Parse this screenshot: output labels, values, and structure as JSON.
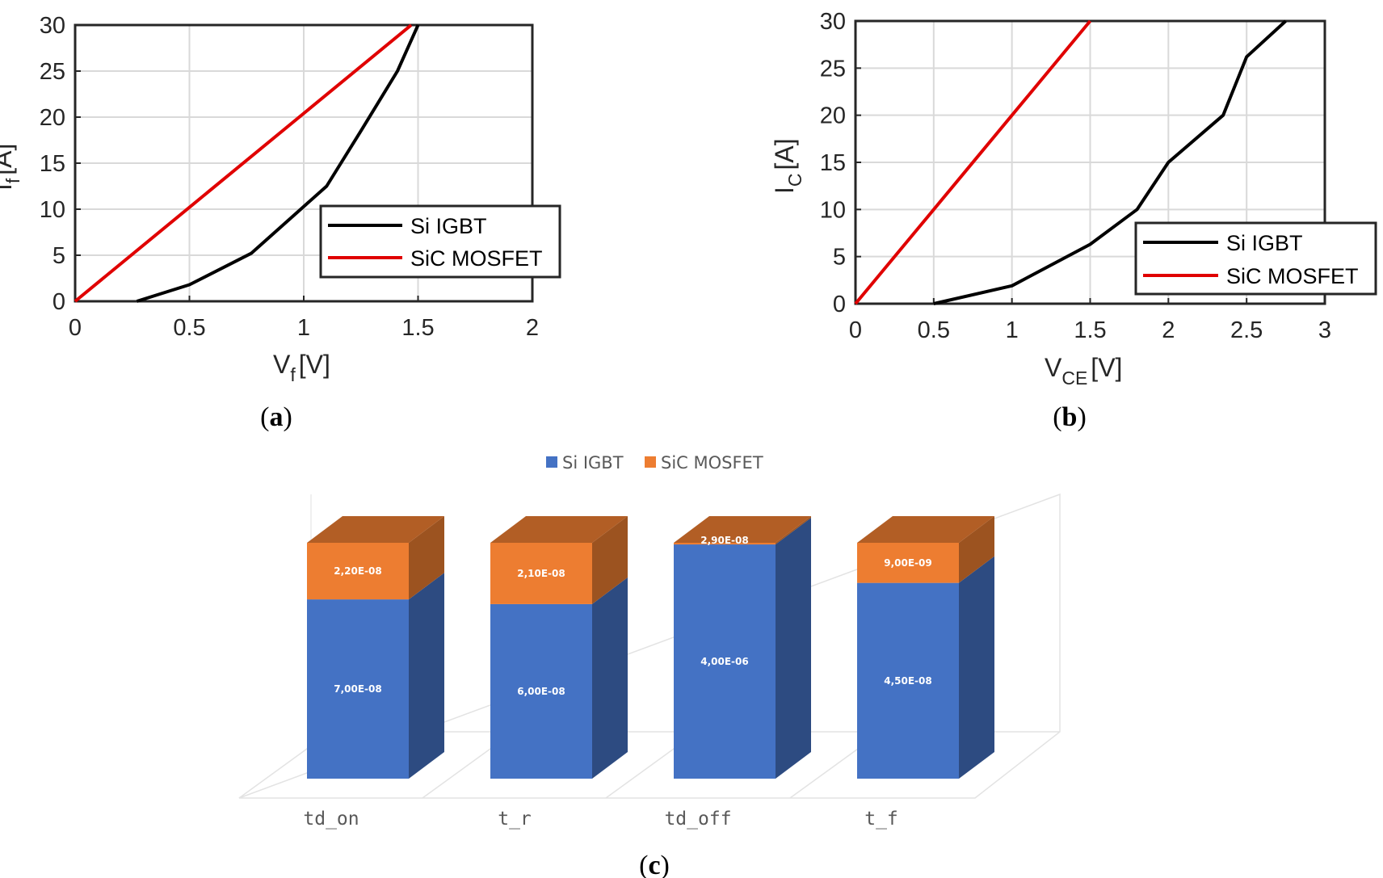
{
  "chart_data": [
    {
      "type": "line",
      "caption_letter": "a",
      "xlabel_main": "V",
      "xlabel_sub": "f",
      "xlabel_unit": "[V]",
      "ylabel_main": "I",
      "ylabel_sub": "f",
      "ylabel_unit": "[A]",
      "xlim": [
        0,
        2
      ],
      "ylim": [
        0,
        30
      ],
      "xticks": [
        "0",
        "0.5",
        "1",
        "1.5",
        "2"
      ],
      "yticks": [
        "0",
        "5",
        "10",
        "15",
        "20",
        "25",
        "30"
      ],
      "grid": true,
      "legend_position": "lower-right",
      "series": [
        {
          "name": "Si IGBT",
          "color": "#000000",
          "points": [
            [
              0.27,
              0
            ],
            [
              0.5,
              1.8
            ],
            [
              0.77,
              5.2
            ],
            [
              1.1,
              12.5
            ],
            [
              1.25,
              18.5
            ],
            [
              1.41,
              25
            ],
            [
              1.5,
              30
            ]
          ]
        },
        {
          "name": "SiC MOSFET",
          "color": "#e00000",
          "points": [
            [
              0,
              0
            ],
            [
              1.47,
              30
            ]
          ]
        }
      ]
    },
    {
      "type": "line",
      "caption_letter": "b",
      "xlabel_main": "V",
      "xlabel_sub": "CE",
      "xlabel_unit": "[V]",
      "ylabel_main": "I",
      "ylabel_sub": "C",
      "ylabel_unit": "[A]",
      "xlim": [
        0,
        3
      ],
      "ylim": [
        0,
        30
      ],
      "xticks": [
        "0",
        "0.5",
        "1",
        "1.5",
        "2",
        "2.5",
        "3"
      ],
      "yticks": [
        "0",
        "5",
        "10",
        "15",
        "20",
        "25",
        "30"
      ],
      "grid": true,
      "legend_position": "lower-right",
      "series": [
        {
          "name": "Si IGBT",
          "color": "#000000",
          "points": [
            [
              0.5,
              0
            ],
            [
              1,
              1.9
            ],
            [
              1.5,
              6.3
            ],
            [
              1.8,
              10
            ],
            [
              2,
              15
            ],
            [
              2.35,
              20
            ],
            [
              2.5,
              26.2
            ],
            [
              2.75,
              30
            ]
          ]
        },
        {
          "name": "SiC MOSFET",
          "color": "#e00000",
          "points": [
            [
              0,
              0
            ],
            [
              0.7,
              14
            ],
            [
              1.5,
              30
            ]
          ]
        }
      ]
    },
    {
      "type": "bar",
      "stacked": true,
      "three_d": true,
      "caption_letter": "c",
      "categories": [
        "td_on",
        "t_r",
        "td_off",
        "t_f"
      ],
      "legend_position": "top",
      "series": [
        {
          "name": "Si IGBT",
          "color": "#4472c4",
          "labels": [
            "7,00E-08",
            "6,00E-08",
            "4,00E-06",
            "4,50E-08"
          ],
          "values": [
            7e-08,
            6e-08,
            4e-06,
            4.5e-08
          ]
        },
        {
          "name": "SiC MOSFET",
          "color": "#ed7d31",
          "labels": [
            "2,20E-08",
            "2,10E-08",
            "2,90E-08",
            "9,00E-09"
          ],
          "values": [
            2.2e-08,
            2.1e-08,
            2.9e-08,
            9e-09
          ]
        }
      ],
      "display_fraction_si": [
        0.76,
        0.74,
        0.993,
        0.83
      ]
    }
  ]
}
